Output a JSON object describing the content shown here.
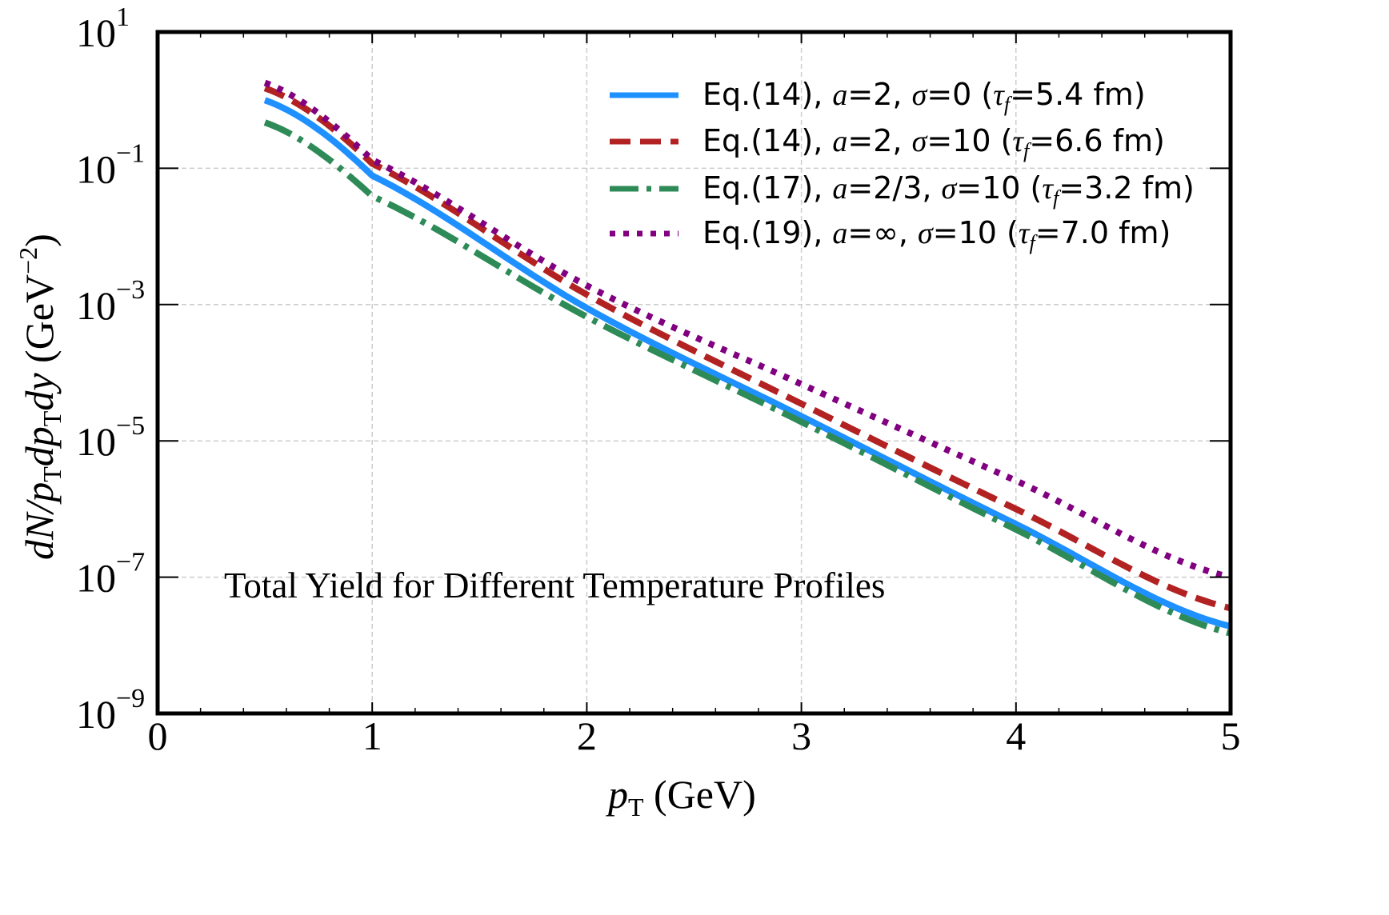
{
  "chart_data": {
    "type": "line",
    "title": "",
    "annotation": "Total Yield for Different Temperature Profiles",
    "xlabel": "p_T (GeV)",
    "xlabel_parts": {
      "var": "p",
      "sub": "T",
      "rest": " (GeV)"
    },
    "ylabel": "dN/p_T dp_T dy (GeV^-2)",
    "ylabel_parts": {
      "a": "dN/p",
      "sub1": "T",
      "b": "dp",
      "sub2": "T",
      "c": "dy",
      "d": " (GeV",
      "sup": "−2",
      "e": ")"
    },
    "xlim": [
      0,
      5
    ],
    "ylim": [
      1e-09,
      10
    ],
    "yscale": "log",
    "grid": true,
    "legend_position": "top-right",
    "x_ticks": [
      0,
      1,
      2,
      3,
      4,
      5
    ],
    "x_tick_labels": [
      "0",
      "1",
      "2",
      "3",
      "4",
      "5"
    ],
    "y_ticks_exp": [
      1,
      -1,
      -3,
      -5,
      -7,
      -9
    ],
    "y_tick_labels": [
      {
        "base": "10",
        "exp": "1"
      },
      {
        "base": "10",
        "exp": "−1"
      },
      {
        "base": "10",
        "exp": "−3"
      },
      {
        "base": "10",
        "exp": "−5"
      },
      {
        "base": "10",
        "exp": "−7"
      },
      {
        "base": "10",
        "exp": "−9"
      }
    ],
    "x": [
      0.5,
      1,
      2,
      3,
      4,
      5
    ],
    "series": [
      {
        "name": "Eq.(14), a=2, σ=0 (τf=5.4 fm)",
        "label_parts": {
          "eq": "Eq.(14), ",
          "a": "a",
          "aval": "=2, ",
          "s": "σ",
          "sval": "=0 (",
          "t": "τ",
          "tsub": "f",
          "tval": "=5.4 fm)"
        },
        "style": "solid",
        "color": "#1E90FF",
        "values": [
          1.0,
          0.078,
          0.00089,
          2.3e-05,
          6e-07,
          1.9e-08
        ]
      },
      {
        "name": "Eq.(14), a=2, σ=10 (τf=6.6 fm)",
        "label_parts": {
          "eq": "Eq.(14), ",
          "a": "a",
          "aval": "=2, ",
          "s": "σ",
          "sval": "=10 (",
          "t": "τ",
          "tsub": "f",
          "tval": "=6.6 fm)"
        },
        "style": "dashed",
        "color": "#B22222",
        "values": [
          1.5,
          0.117,
          0.0014,
          3.5e-05,
          1e-06,
          3.5e-08
        ]
      },
      {
        "name": "Eq.(17), a=2/3, σ=10 (τf=3.2 fm)",
        "label_parts": {
          "eq": "Eq.(17), ",
          "a": "a",
          "aval": "=2/3, ",
          "s": "σ",
          "sval": "=10 (",
          "t": "τ",
          "tsub": "f",
          "tval": "=3.2 fm)"
        },
        "style": "dashdot",
        "color": "#2E8B57",
        "values": [
          0.47,
          0.039,
          0.00066,
          1.9e-05,
          5e-07,
          1.5e-08
        ]
      },
      {
        "name": "Eq.(19), a=∞, σ=10 (τf=7.0 fm)",
        "label_parts": {
          "eq": "Eq.(19), ",
          "a": "a",
          "aval": "=∞, ",
          "s": "σ",
          "sval": "=10 (",
          "t": "τ",
          "tsub": "f",
          "tval": "=7.0 fm)"
        },
        "style": "dotted",
        "color": "#800080",
        "values": [
          1.8,
          0.133,
          0.0019,
          6.8e-05,
          2.6e-06,
          1e-07
        ]
      }
    ]
  }
}
